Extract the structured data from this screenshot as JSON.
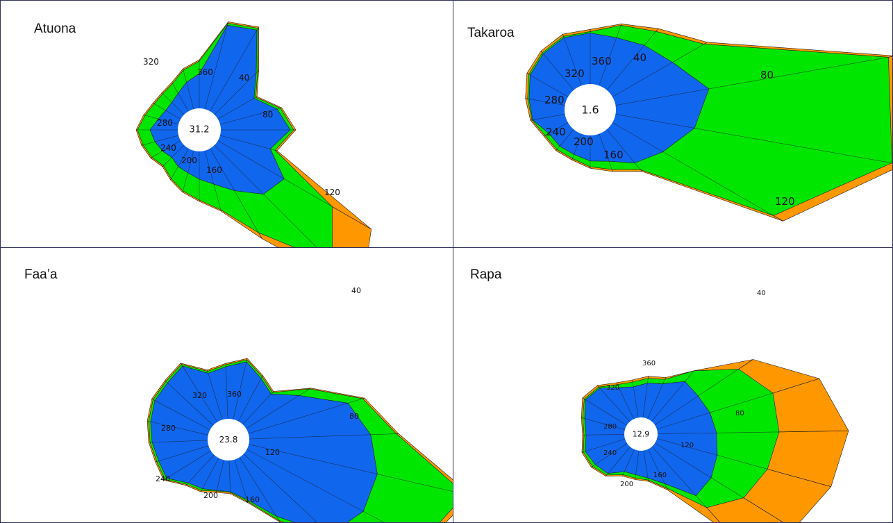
{
  "colors": {
    "outer": "#ff9800",
    "middle": "#00e600",
    "inner": "#1166ee",
    "edge": "#333333",
    "border": "#2e2e5c"
  },
  "chart_data": [
    {
      "type": "radar",
      "title": "Atuona",
      "center_value": "31.2",
      "direction_labels": [
        "320",
        "360",
        "40",
        "80",
        "120",
        "160",
        "200",
        "240",
        "280"
      ],
      "layers": [
        {
          "color": "orange",
          "values": [
            90,
            65,
            92,
            108,
            85,
            255,
            300,
            150,
            90,
            72,
            62,
            52,
            44,
            50,
            55,
            60,
            52,
            46,
            45,
            48,
            60,
            70,
            130,
            140
          ]
        },
        {
          "color": "green",
          "values": [
            88,
            63,
            90,
            105,
            82,
            190,
            240,
            140,
            88,
            70,
            60,
            50,
            42,
            48,
            53,
            58,
            50,
            44,
            43,
            46,
            58,
            68,
            128,
            138
          ]
        },
        {
          "color": "blue",
          "values": [
            85,
            60,
            85,
            100,
            75,
            110,
            100,
            70,
            50,
            40,
            33,
            30,
            25,
            30,
            35,
            40,
            30,
            25,
            25,
            30,
            40,
            50,
            125,
            135
          ]
        }
      ]
    },
    {
      "type": "radar",
      "title": "Takaroa",
      "center_value": "1.6",
      "direction_labels": [
        "360",
        "40",
        "80",
        "120",
        "160",
        "200",
        "240",
        "280",
        "320"
      ],
      "layers": [
        {
          "color": "orange",
          "values": [
            75,
            90,
            110,
            150,
            390,
            400,
            270,
            75,
            55,
            45,
            38,
            38,
            38,
            48,
            55,
            65,
            70,
            75
          ]
        },
        {
          "color": "green",
          "values": [
            72,
            88,
            105,
            145,
            380,
            385,
            255,
            72,
            52,
            43,
            36,
            36,
            36,
            46,
            52,
            62,
            67,
            72
          ]
        },
        {
          "color": "blue",
          "values": [
            70,
            70,
            80,
            95,
            130,
            110,
            80,
            60,
            40,
            35,
            30,
            30,
            30,
            45,
            50,
            60,
            65,
            70
          ]
        }
      ]
    },
    {
      "type": "radar",
      "title": "Faa’a",
      "center_value": "23.8",
      "direction_labels": [
        "40",
        "80",
        "120",
        "160",
        "200",
        "240",
        "280",
        "320",
        "360"
      ],
      "layers": [
        {
          "color": "orange",
          "values": [
            65,
            110,
            175,
            215,
            330,
            290,
            200,
            110,
            65,
            48,
            48,
            55,
            60,
            80,
            80,
            85,
            90,
            95,
            95,
            100,
            75,
            80,
            90,
            75
          ]
        },
        {
          "color": "green",
          "values": [
            63,
            108,
            172,
            212,
            320,
            285,
            195,
            107,
            63,
            46,
            46,
            53,
            58,
            78,
            78,
            83,
            88,
            93,
            93,
            98,
            73,
            78,
            88,
            73
          ]
        },
        {
          "color": "blue",
          "values": [
            60,
            90,
            150,
            175,
            190,
            190,
            170,
            100,
            60,
            45,
            45,
            50,
            55,
            75,
            75,
            80,
            85,
            90,
            90,
            95,
            70,
            75,
            85,
            70
          ]
        }
      ]
    },
    {
      "type": "radar",
      "title": "Rapa",
      "center_value": "12.9",
      "direction_labels": [
        "40",
        "80",
        "120",
        "160",
        "200",
        "240",
        "280",
        "320",
        "360"
      ],
      "layers": [
        {
          "color": "orange",
          "values": [
            95,
            170,
            245,
            275,
            260,
            235,
            170,
            65,
            45,
            42,
            42,
            55,
            62,
            65,
            60,
            65,
            75,
            70,
            58,
            55,
            60,
            65
          ]
        },
        {
          "color": "green",
          "values": [
            95,
            145,
            175,
            175,
            165,
            150,
            118,
            62,
            43,
            40,
            40,
            53,
            60,
            63,
            58,
            63,
            72,
            67,
            55,
            52,
            57,
            62
          ]
        },
        {
          "color": "blue",
          "values": [
            75,
            75,
            80,
            85,
            90,
            95,
            95,
            55,
            40,
            35,
            35,
            50,
            55,
            60,
            55,
            60,
            70,
            65,
            50,
            45,
            50,
            55
          ]
        }
      ]
    }
  ]
}
